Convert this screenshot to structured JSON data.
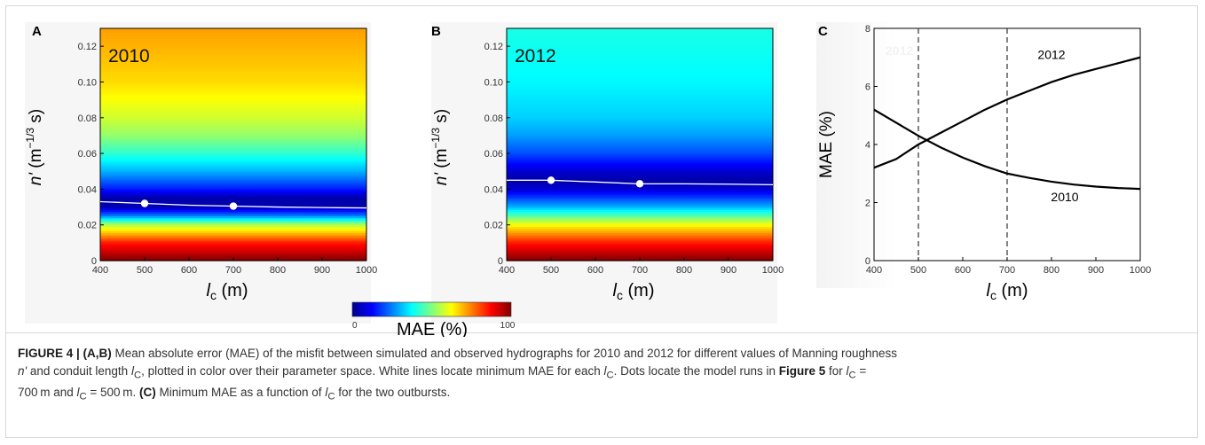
{
  "panels": [
    {
      "letter": "A",
      "year": "2010",
      "ylabel_main": "n'",
      "ylabel_unit": " (m",
      "ylabel_exp": "−1/3",
      "ylabel_tail": " s)",
      "xlabel_main": "l",
      "xlabel_sub": "c",
      "xlabel_unit": " (m)"
    },
    {
      "letter": "B",
      "year": "2012",
      "ylabel_main": "n'",
      "ylabel_unit": " (m",
      "ylabel_exp": "−1/3",
      "ylabel_tail": " s)",
      "xlabel_main": "l",
      "xlabel_sub": "c",
      "xlabel_unit": " (m)"
    },
    {
      "letter": "C",
      "ylabel": "MAE (%)",
      "xlabel_main": "l",
      "xlabel_sub": "c",
      "xlabel_unit": " (m)"
    }
  ],
  "colorbar": {
    "min_label": "0",
    "max_label": "100",
    "label": "MAE (%)",
    "colormap": "jet",
    "range": [
      0,
      100
    ]
  },
  "chart_data": [
    {
      "type": "heatmap",
      "panel": "A",
      "annotation": "2010",
      "x_ticks": [
        "400",
        "500",
        "600",
        "700",
        "800",
        "900",
        "1000"
      ],
      "y_ticks": [
        "0",
        "0.02",
        "0.04",
        "0.06",
        "0.08",
        "0.10",
        "0.12"
      ],
      "xlim": [
        400,
        1000
      ],
      "ylim": [
        0,
        0.13
      ],
      "colorbar_range": [
        0,
        100
      ],
      "mae_profile_n": [
        0,
        0.01,
        0.02,
        0.025,
        0.03,
        0.035,
        0.04,
        0.05,
        0.06,
        0.07,
        0.08,
        0.1,
        0.13
      ],
      "mae_profile_value": [
        100,
        85,
        55,
        25,
        5,
        4,
        15,
        30,
        42,
        52,
        58,
        66,
        72
      ],
      "min_line": {
        "x": [
          400,
          500,
          600,
          700,
          800,
          900,
          1000
        ],
        "y": [
          0.033,
          0.032,
          0.031,
          0.0305,
          0.03,
          0.0297,
          0.0295
        ]
      },
      "dots": [
        {
          "x": 500,
          "y": 0.032
        },
        {
          "x": 700,
          "y": 0.0305
        }
      ]
    },
    {
      "type": "heatmap",
      "panel": "B",
      "annotation": "2012",
      "x_ticks": [
        "400",
        "500",
        "600",
        "700",
        "800",
        "900",
        "1000"
      ],
      "y_ticks": [
        "0",
        "0.02",
        "0.04",
        "0.06",
        "0.08",
        "0.10",
        "0.12"
      ],
      "xlim": [
        400,
        1000
      ],
      "ylim": [
        0,
        0.13
      ],
      "colorbar_range": [
        0,
        100
      ],
      "mae_profile_n": [
        0,
        0.01,
        0.02,
        0.03,
        0.04,
        0.045,
        0.05,
        0.06,
        0.07,
        0.08,
        0.1,
        0.13
      ],
      "mae_profile_value": [
        100,
        85,
        62,
        30,
        8,
        4,
        8,
        20,
        28,
        33,
        37,
        40
      ],
      "min_line": {
        "x": [
          400,
          500,
          600,
          700,
          800,
          900,
          1000
        ],
        "y": [
          0.045,
          0.045,
          0.044,
          0.043,
          0.043,
          0.0428,
          0.0425
        ]
      },
      "dots": [
        {
          "x": 500,
          "y": 0.045
        },
        {
          "x": 700,
          "y": 0.043
        }
      ]
    },
    {
      "type": "line",
      "panel": "C",
      "x_ticks": [
        "400",
        "500",
        "600",
        "700",
        "800",
        "900",
        "1000"
      ],
      "y_ticks": [
        "0",
        "2",
        "4",
        "6",
        "8"
      ],
      "xlim": [
        400,
        1000
      ],
      "ylim": [
        0,
        8
      ],
      "ylabel": "MAE (%)",
      "series": [
        {
          "name": "2012",
          "x": [
            400,
            450,
            500,
            550,
            600,
            650,
            700,
            750,
            800,
            850,
            900,
            950,
            1000
          ],
          "y": [
            3.2,
            3.5,
            4.0,
            4.4,
            4.8,
            5.2,
            5.55,
            5.85,
            6.15,
            6.4,
            6.6,
            6.8,
            7.0
          ]
        },
        {
          "name": "2010",
          "x": [
            400,
            450,
            500,
            550,
            600,
            650,
            700,
            750,
            800,
            850,
            900,
            950,
            1000
          ],
          "y": [
            5.2,
            4.75,
            4.3,
            3.9,
            3.55,
            3.25,
            3.0,
            2.85,
            2.72,
            2.62,
            2.55,
            2.5,
            2.47
          ]
        }
      ],
      "vlines": [
        500,
        700
      ],
      "ghost_label": "2012"
    }
  ],
  "caption": {
    "label": "FIGURE 4 | (A,B)",
    "text1": " Mean absolute error (MAE) of the misfit between simulated and observed hydrographs for 2010 and 2012 for different values of Manning roughness",
    "text2a": "n'",
    "text2b": " and conduit length ",
    "text2c": "l",
    "text2d": "C",
    "text2e": ", plotted in color over their parameter space. White lines locate minimum MAE for each ",
    "text2f": "l",
    "text2g": "C",
    "text2h": ". Dots locate the model runs in ",
    "fig5": "Figure 5",
    "text2i": " for ",
    "text2j": "l",
    "text2k": "C",
    "text2l": " =",
    "text3a": "700 m and ",
    "text3b": "l",
    "text3c": "C",
    "text3d": " = 500 m. ",
    "labelC": "(C)",
    "text3e": " Minimum MAE as a function of ",
    "text3f": "l",
    "text3g": "C",
    "text3h": " for the two outbursts."
  }
}
